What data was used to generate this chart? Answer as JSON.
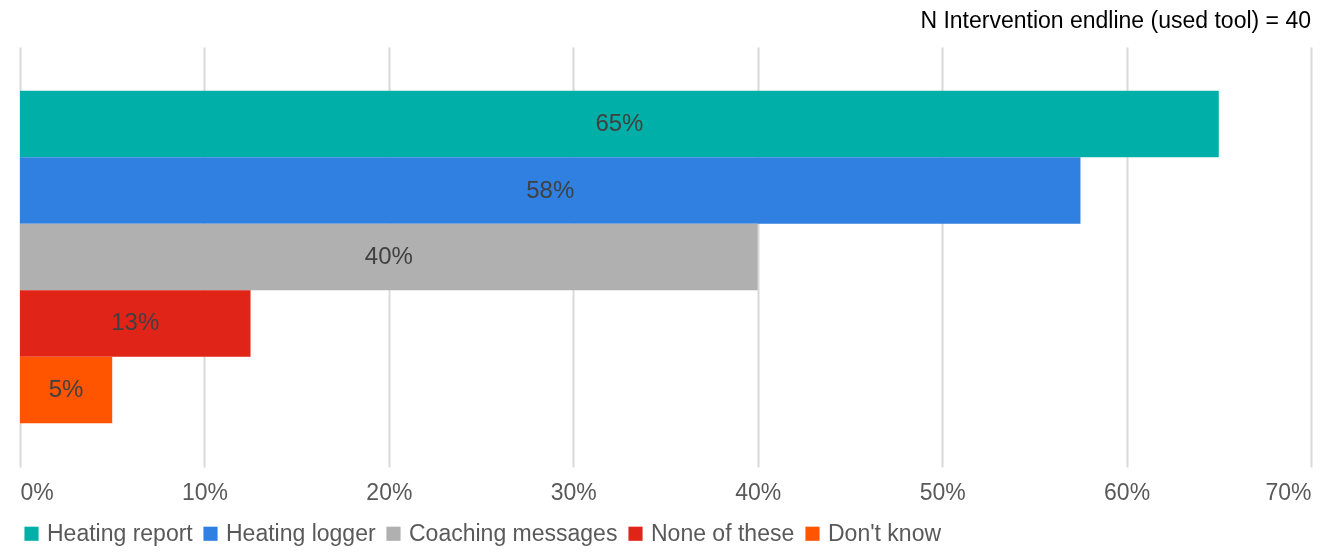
{
  "chart_data": {
    "type": "bar",
    "orientation": "horizontal",
    "title": "N Intervention endline (used tool) = 40",
    "categories": [
      null
    ],
    "series": [
      {
        "name": "Heating report",
        "color": "#00b0a8",
        "values": [
          65
        ],
        "value_labels": [
          "65%"
        ]
      },
      {
        "name": "Heating logger",
        "color": "#2f80e0",
        "values": [
          57.5
        ],
        "value_labels": [
          "58%"
        ]
      },
      {
        "name": "Coaching messages",
        "color": "#b0b0b0",
        "values": [
          40
        ],
        "value_labels": [
          "40%"
        ]
      },
      {
        "name": "None of these",
        "color": "#e02418",
        "values": [
          12.5
        ],
        "value_labels": [
          "13%"
        ]
      },
      {
        "name": "Don't know",
        "color": "#ff5500",
        "values": [
          5
        ],
        "value_labels": [
          "5%"
        ]
      }
    ],
    "xlim": [
      0,
      70
    ],
    "xticks": [
      {
        "value": 0,
        "label": "0%"
      },
      {
        "value": 10,
        "label": "10%"
      },
      {
        "value": 20,
        "label": "20%"
      },
      {
        "value": 30,
        "label": "30%"
      },
      {
        "value": 40,
        "label": "40%"
      },
      {
        "value": 50,
        "label": "50%"
      },
      {
        "value": 60,
        "label": "60%"
      },
      {
        "value": 70,
        "label": "70%"
      }
    ],
    "grid": "x",
    "legend": "bottom"
  }
}
